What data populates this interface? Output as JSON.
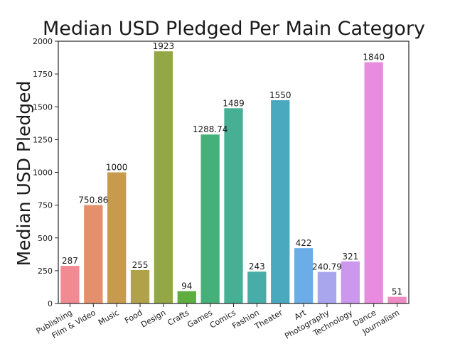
{
  "chart_data": {
    "type": "bar",
    "title": "Median USD Pledged Per Main Category",
    "xlabel": "",
    "ylabel": "Median USD Pledged",
    "ylim": [
      0,
      2000
    ],
    "yticks": [
      0,
      250,
      500,
      750,
      1000,
      1250,
      1500,
      1750,
      2000
    ],
    "grid": false,
    "categories": [
      "Publishing",
      "Film & Video",
      "Music",
      "Food",
      "Design",
      "Crafts",
      "Games",
      "Comics",
      "Fashion",
      "Theater",
      "Art",
      "Photography",
      "Technology",
      "Dance",
      "Journalism"
    ],
    "values": [
      287,
      750.86,
      1000,
      255,
      1923,
      94,
      1288.74,
      1489,
      243,
      1550,
      422,
      240.79,
      321,
      1840,
      51
    ],
    "value_labels": [
      "287",
      "750.86",
      "1000",
      "255",
      "1923",
      "94",
      "1288.74",
      "1489",
      "243",
      "1550",
      "422",
      "240.79",
      "321",
      "1840",
      "51"
    ],
    "colors": [
      "#f08b94",
      "#e5906c",
      "#c79a4f",
      "#b0a248",
      "#93a744",
      "#5ead3f",
      "#45b07a",
      "#47b094",
      "#48ada7",
      "#4aa9bf",
      "#6aade7",
      "#a9a6ee",
      "#cc98ed",
      "#e88ce0",
      "#ee8bc3"
    ]
  }
}
